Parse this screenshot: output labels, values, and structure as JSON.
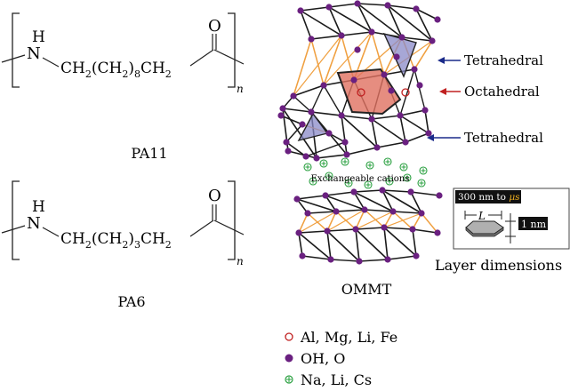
{
  "pa11": {
    "nh": "N",
    "h": "H",
    "o": "O",
    "chain_a": "CH",
    "chain_a_sub": "2",
    "chain_b": "(CH",
    "chain_b_sub": "2",
    "chain_c": ")",
    "chain_c_sub": "8",
    "chain_d": "CH",
    "chain_d_sub": "2",
    "n": "n",
    "caption": "PA11"
  },
  "pa6": {
    "nh": "N",
    "h": "H",
    "o": "O",
    "chain_a": "CH",
    "chain_a_sub": "2",
    "chain_b": "(CH",
    "chain_b_sub": "2",
    "chain_c": ")",
    "chain_c_sub": "3",
    "chain_d": "CH",
    "chain_d_sub": "2",
    "n": "n",
    "caption": "PA6"
  },
  "ommt": {
    "caption": "OMMT",
    "labels": {
      "tetrahedral_top": "Tetrahedral",
      "octahedral": "Octahedral",
      "tetrahedral_bottom": "Tetrahedral",
      "exchangeable": "Exchangeable cations"
    },
    "dimensions": {
      "length_label": "300 nm to μs",
      "length_prefix": "300 nm to ",
      "length_unit": "μs",
      "l_symbol": "L",
      "thickness_label": "1 nm",
      "caption": "Layer dimensions"
    }
  },
  "legend": [
    {
      "symbol": "open-red-circle",
      "text": "Al, Mg, Li, Fe"
    },
    {
      "symbol": "filled-purple-circle",
      "text": "OH, O"
    },
    {
      "symbol": "green-plus-circle",
      "text": "Na, Li, Cs"
    }
  ],
  "colors": {
    "purple": "#6a2080",
    "orange": "#f0a040",
    "red": "#c02020",
    "blue": "#1a2a8a",
    "green": "#2aa040",
    "tetra_fill": "#8a8ac8",
    "octa_fill": "#e07060"
  }
}
